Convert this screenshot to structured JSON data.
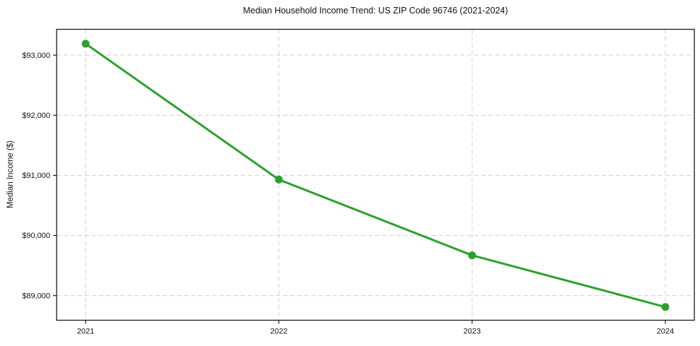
{
  "chart_data": {
    "type": "line",
    "title": "Median Household Income Trend: US ZIP Code 96746 (2021-2024)",
    "xlabel": "",
    "ylabel": "Median Income ($)",
    "categories": [
      "2021",
      "2022",
      "2023",
      "2024"
    ],
    "series": [
      {
        "name": "Median Household Income",
        "values": [
          93190,
          90930,
          89670,
          88810
        ]
      }
    ],
    "yticks": [
      {
        "value": 89000,
        "label": "$89,000"
      },
      {
        "value": 90000,
        "label": "$90,000"
      },
      {
        "value": 91000,
        "label": "$91,000"
      },
      {
        "value": 92000,
        "label": "$92,000"
      },
      {
        "value": 93000,
        "label": "$93,000"
      }
    ],
    "xlim": [
      -0.15,
      3.15
    ],
    "ylim": [
      88590,
      93430
    ],
    "grid": {
      "visible": true,
      "line_style": "dashed",
      "color": "#cfcfcf"
    },
    "legend_position": "none",
    "line_color": "#2ca02c",
    "marker_color": "#2ca02c",
    "marker_shape": "circle",
    "axis_color": "#1a1a1a",
    "text_color": "#111111",
    "background_color": "#ffffff"
  }
}
